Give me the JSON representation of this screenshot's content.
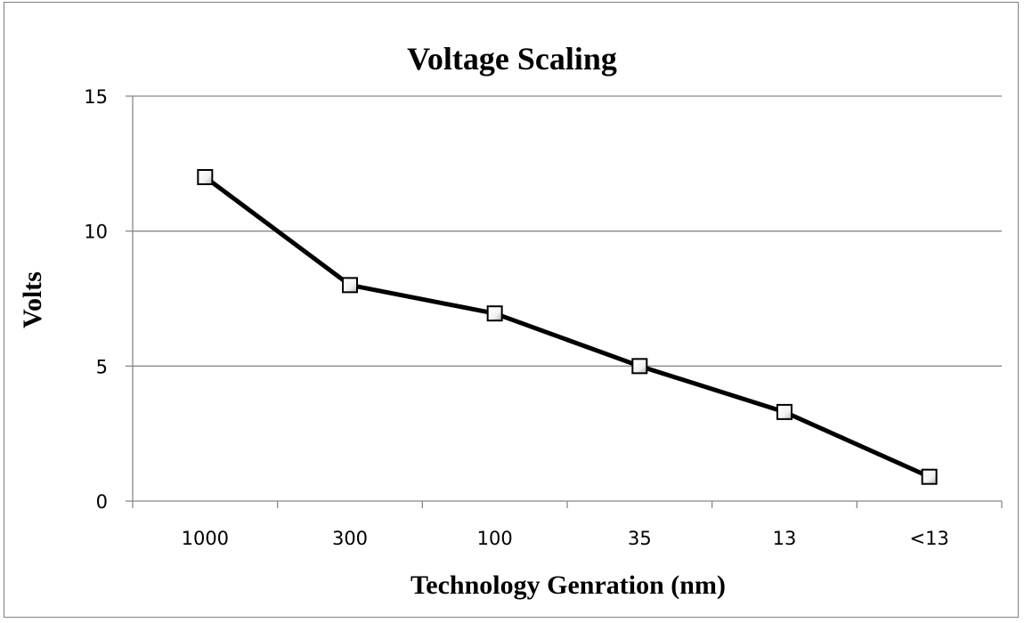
{
  "chart_data": {
    "type": "line",
    "title": "Voltage Scaling",
    "xlabel": "Technology Genration (nm)",
    "ylabel": "Volts",
    "categories": [
      "1000",
      "300",
      "100",
      "35",
      "13",
      "<13"
    ],
    "series": [
      {
        "values": [
          12,
          8,
          6.95,
          5,
          3.3,
          0.9
        ]
      }
    ],
    "ylim": [
      0,
      15
    ],
    "yticks": [
      0,
      5,
      10,
      15
    ],
    "grid": true,
    "marker": "square",
    "colors": {
      "line": "#000000",
      "gridline": "#888888",
      "marker_fill": "#ffffff",
      "frame": "#7f7f7f"
    }
  }
}
